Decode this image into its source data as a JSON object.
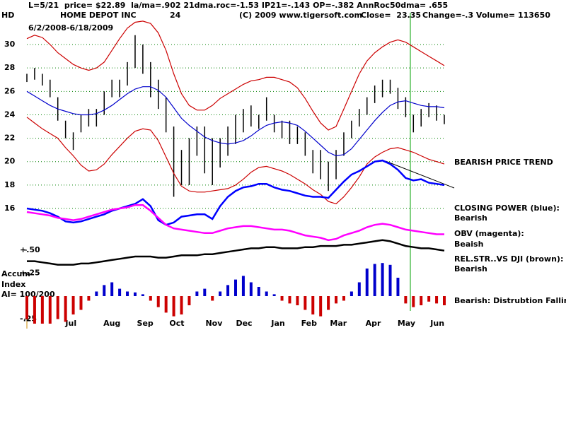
{
  "header": {
    "line1": "L=5/21  price= $22.89  la/ma=.902 21dma.roc=-1.53 IP21=-.143 OP=-.382 AnnRoc50dma= .655",
    "symbol": "HD",
    "company": "HOME DEPOT INC",
    "code": "24",
    "copyright": "(C) 2009 www.tigersoft.com",
    "close": "Close=  23.35",
    "change": "Change=-.3 Volume= 113650",
    "dates": "6/2/2008-6/18/2009"
  },
  "annotations": {
    "trend": "BEARISH PRICE TREND",
    "cp_state": "Bearish",
    "obv_state": "Beaish",
    "rs_state": "Bearish",
    "accum_state": "Bearish: Distrubtion Falling.",
    "accum_label": [
      "Accum",
      "Index",
      "AI= 100/200"
    ]
  },
  "chart_data": [
    {
      "type": "stock",
      "xlim": [
        0,
        54
      ],
      "xticks": [
        {
          "value": 5.7,
          "label": "Jul"
        },
        {
          "value": 11,
          "label": "Aug"
        },
        {
          "value": 15.3,
          "label": "Sep"
        },
        {
          "value": 19.4,
          "label": "Oct"
        },
        {
          "value": 24.2,
          "label": "Nov"
        },
        {
          "value": 28.1,
          "label": "Dec"
        },
        {
          "value": 32.5,
          "label": "Jan"
        },
        {
          "value": 36.5,
          "label": "Feb"
        },
        {
          "value": 40.3,
          "label": "Mar"
        },
        {
          "value": 44.8,
          "label": "Apr"
        },
        {
          "value": 49.1,
          "label": "May"
        },
        {
          "value": 53.1,
          "label": "Jun"
        }
      ],
      "ylim": [
        10.8,
        32.5
      ],
      "yticks": [
        16,
        18,
        20,
        22,
        24,
        26,
        28,
        30
      ],
      "grid": true,
      "grid_color": "#008000",
      "bar_color": "#000000",
      "high": [
        27.5,
        28,
        27.5,
        27,
        25.5,
        23.5,
        22.5,
        24,
        24.5,
        24.5,
        26,
        27,
        27,
        28.5,
        30.8,
        30,
        28.5,
        27,
        25.5,
        23,
        21,
        22,
        23,
        23,
        22,
        22,
        23,
        24,
        24.5,
        24.8,
        24,
        25.5,
        24,
        23.5,
        23.5,
        23,
        22.5,
        21,
        21,
        20,
        21,
        22.5,
        23.5,
        24.5,
        25.5,
        26.5,
        27,
        27,
        26.3,
        25.5,
        24,
        24.5,
        25,
        24.8,
        24
      ],
      "low": [
        26.8,
        27,
        26.5,
        25.5,
        23.5,
        22,
        21,
        22.5,
        23,
        23,
        24,
        25.5,
        25.5,
        26.5,
        28,
        27.5,
        25.5,
        24.5,
        22.5,
        17,
        18,
        18,
        20.5,
        19,
        18,
        19.5,
        20.5,
        21.5,
        22.5,
        23,
        22.8,
        23.5,
        22.5,
        22,
        21.5,
        21.5,
        20.5,
        19,
        18.5,
        17.5,
        18.5,
        20.5,
        22,
        23,
        24,
        25,
        25.5,
        25.8,
        24.5,
        23.8,
        22.5,
        23,
        23.8,
        23.5,
        23.2
      ],
      "series": [
        {
          "color": "#cc0000",
          "values": [
            30.5,
            30.8,
            30.6,
            30,
            29.3,
            28.8,
            28.3,
            28,
            27.8,
            28,
            28.5,
            29.5,
            30.5,
            31.4,
            31.9,
            32,
            31.8,
            31,
            29.5,
            27.5,
            25.8,
            24.8,
            24.4,
            24.4,
            24.8,
            25.4,
            25.8,
            26.2,
            26.6,
            26.9,
            27,
            27.2,
            27.2,
            27,
            26.8,
            26.3,
            25.4,
            24.3,
            23.3,
            22.7,
            23,
            24.5,
            26,
            27.5,
            28.6,
            29.3,
            29.8,
            30.2,
            30.4,
            30.2,
            29.8,
            29.4,
            29,
            28.6,
            28.2
          ]
        },
        {
          "color": "#cc0000",
          "values": [
            23.8,
            23.3,
            22.8,
            22.4,
            22,
            21.2,
            20.5,
            19.7,
            19.2,
            19.3,
            19.8,
            20.6,
            21.3,
            22,
            22.6,
            22.8,
            22.7,
            21.8,
            20.4,
            19,
            17.9,
            17.5,
            17.4,
            17.4,
            17.5,
            17.6,
            17.7,
            18,
            18.5,
            19.1,
            19.5,
            19.6,
            19.4,
            19.2,
            18.9,
            18.5,
            18.1,
            17.6,
            17.2,
            16.6,
            16.4,
            17,
            17.8,
            18.7,
            19.8,
            20.4,
            20.8,
            21.1,
            21.2,
            21,
            20.8,
            20.5,
            20.2,
            20,
            19.8
          ]
        },
        {
          "color": "#0000cc",
          "values": [
            26,
            25.6,
            25.2,
            24.8,
            24.5,
            24.3,
            24.1,
            24,
            24,
            24.1,
            24.4,
            24.8,
            25.3,
            25.8,
            26.2,
            26.4,
            26.4,
            26.1,
            25.5,
            24.6,
            23.7,
            23.1,
            22.6,
            22.1,
            21.8,
            21.6,
            21.5,
            21.6,
            21.8,
            22.2,
            22.7,
            23.1,
            23.3,
            23.4,
            23.3,
            23.1,
            22.6,
            22,
            21.4,
            20.8,
            20.5,
            20.6,
            21.1,
            21.9,
            22.7,
            23.5,
            24.2,
            24.8,
            25.1,
            25.2,
            25,
            24.8,
            24.7,
            24.7,
            24.6
          ]
        },
        {
          "name": "CLOSING POWER (blue):",
          "color": "#0000ff",
          "values": [
            16,
            15.9,
            15.8,
            15.6,
            15.3,
            14.9,
            14.8,
            14.9,
            15.1,
            15.3,
            15.5,
            15.8,
            16,
            16.2,
            16.4,
            16.8,
            16.2,
            15,
            14.6,
            14.8,
            15.3,
            15.4,
            15.5,
            15.5,
            15.1,
            16.2,
            17,
            17.5,
            17.8,
            17.9,
            18.1,
            18.1,
            17.8,
            17.6,
            17.5,
            17.3,
            17.1,
            17,
            17,
            16.9,
            17.6,
            18.3,
            18.9,
            19.2,
            19.6,
            20,
            20.1,
            19.8,
            19.3,
            18.6,
            18.4,
            18.5,
            18.2,
            18.1,
            18
          ]
        },
        {
          "name": "OBV (magenta):",
          "color": "#ff00ff",
          "values": [
            15.7,
            15.6,
            15.5,
            15.4,
            15.2,
            15.1,
            15,
            15.1,
            15.3,
            15.5,
            15.7,
            15.9,
            16,
            16.1,
            16.3,
            16.3,
            15.8,
            15.2,
            14.6,
            14.3,
            14.2,
            14.1,
            14,
            13.9,
            13.9,
            14.1,
            14.3,
            14.4,
            14.5,
            14.5,
            14.4,
            14.3,
            14.2,
            14.2,
            14.1,
            13.9,
            13.7,
            13.6,
            13.5,
            13.3,
            13.4,
            13.7,
            13.9,
            14.1,
            14.4,
            14.6,
            14.7,
            14.6,
            14.4,
            14.2,
            14.1,
            14,
            13.9,
            13.8,
            13.8
          ]
        },
        {
          "name": "REL.STR..VS DJI (brown):",
          "color": "#000000",
          "values": [
            11.5,
            11.5,
            11.4,
            11.3,
            11.2,
            11.2,
            11.2,
            11.3,
            11.3,
            11.4,
            11.5,
            11.6,
            11.7,
            11.8,
            11.9,
            11.9,
            11.9,
            11.8,
            11.8,
            11.9,
            12,
            12,
            12,
            12.1,
            12.1,
            12.2,
            12.3,
            12.4,
            12.5,
            12.6,
            12.6,
            12.7,
            12.7,
            12.6,
            12.6,
            12.6,
            12.7,
            12.7,
            12.8,
            12.8,
            12.8,
            12.9,
            12.9,
            13,
            13.1,
            13.2,
            13.3,
            13.2,
            13,
            12.8,
            12.7,
            12.6,
            12.6,
            12.5,
            12.4
          ]
        }
      ]
    },
    {
      "type": "bar",
      "xlim": [
        0,
        54
      ],
      "ylim": [
        -0.35,
        0.6
      ],
      "yticks": [
        {
          "value": 0.5,
          "label": "+.50"
        },
        {
          "value": 0.25,
          "label": "+.25"
        },
        {
          "value": -0.25,
          "label": "-.25"
        }
      ],
      "positive_color": "#0000cc",
      "negative_color": "#cc0000",
      "values": [
        -0.25,
        -0.3,
        -0.3,
        -0.3,
        -0.25,
        -0.28,
        -0.2,
        -0.15,
        -0.05,
        0.05,
        0.12,
        0.15,
        0.08,
        0.05,
        0.04,
        0.02,
        -0.05,
        -0.12,
        -0.18,
        -0.22,
        -0.2,
        -0.1,
        0.05,
        0.08,
        -0.05,
        0.05,
        0.12,
        0.18,
        0.22,
        0.15,
        0.1,
        0.05,
        0.02,
        -0.05,
        -0.08,
        -0.1,
        -0.15,
        -0.2,
        -0.22,
        -0.15,
        -0.08,
        -0.05,
        0.05,
        0.15,
        0.3,
        0.35,
        0.36,
        0.34,
        0.2,
        -0.08,
        -0.12,
        -0.1,
        -0.06,
        -0.08,
        -0.1
      ]
    }
  ]
}
